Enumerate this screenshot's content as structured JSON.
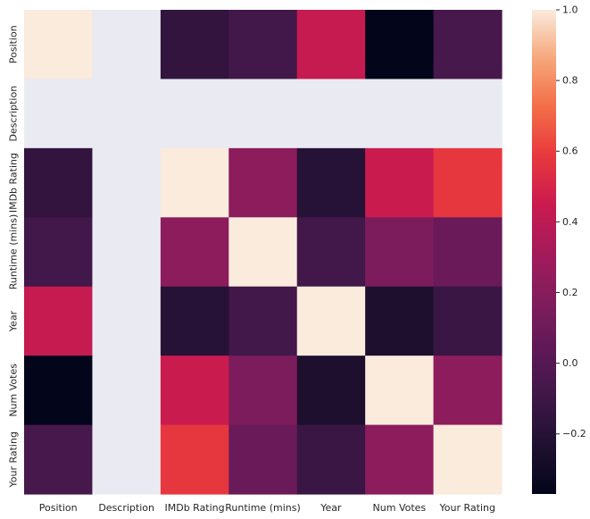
{
  "chart_data": {
    "type": "heatmap",
    "title": "",
    "xlabel": "",
    "ylabel": "",
    "x_labels": [
      "Position",
      "Description",
      "IMDb Rating",
      "Runtime (mins)",
      "Year",
      "Num Votes",
      "Your Rating"
    ],
    "y_labels": [
      "Position",
      "Description",
      "IMDb Rating",
      "Runtime (mins)",
      "Year",
      "Num Votes",
      "Your Rating"
    ],
    "values": [
      [
        1.0,
        null,
        -0.15,
        -0.08,
        0.43,
        -0.37,
        -0.06
      ],
      [
        null,
        null,
        null,
        null,
        null,
        null,
        null
      ],
      [
        -0.15,
        null,
        1.0,
        0.22,
        -0.2,
        0.45,
        0.58
      ],
      [
        -0.08,
        null,
        0.22,
        1.0,
        -0.08,
        0.16,
        0.09
      ],
      [
        0.43,
        null,
        -0.2,
        -0.08,
        1.0,
        -0.24,
        -0.12
      ],
      [
        -0.37,
        null,
        0.45,
        0.16,
        -0.24,
        1.0,
        0.22
      ],
      [
        -0.06,
        null,
        0.58,
        0.09,
        -0.12,
        0.22,
        1.0
      ]
    ],
    "vmin": -0.37,
    "vmax": 1.0,
    "missing_color": "#eaeaf2",
    "colormap": "rocket",
    "colorbar": {
      "ticks": [
        1.0,
        0.8,
        0.6,
        0.4,
        0.2,
        0.0,
        -0.2
      ],
      "tick_labels": [
        "1.0",
        "0.8",
        "0.6",
        "0.4",
        "0.2",
        "0.0",
        "−0.2"
      ]
    },
    "grid": false,
    "legend": "colorbar-right"
  }
}
